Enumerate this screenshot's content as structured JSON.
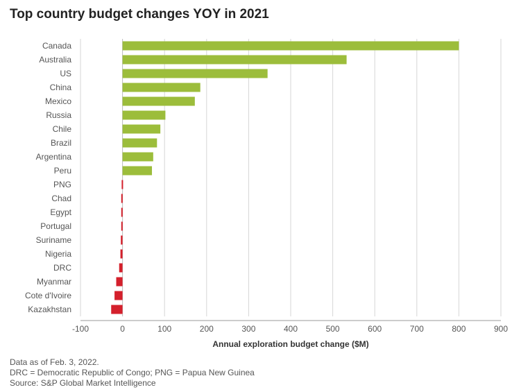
{
  "chart_data": {
    "type": "bar",
    "orientation": "horizontal",
    "title": "Top country budget changes YOY in 2021",
    "xlabel": "Annual exploration budget change ($M)",
    "ylabel": "",
    "xlim": [
      -100,
      900
    ],
    "xticks": [
      -100,
      0,
      100,
      200,
      300,
      400,
      500,
      600,
      700,
      800,
      900
    ],
    "grid": "vertical",
    "categories": [
      "Canada",
      "Australia",
      "US",
      "China",
      "Mexico",
      "Russia",
      "Chile",
      "Brazil",
      "Argentina",
      "Peru",
      "PNG",
      "Chad",
      "Egypt",
      "Portugal",
      "Suriname",
      "Nigeria",
      "DRC",
      "Myanmar",
      "Cote d'Ivoire",
      "Kazakhstan"
    ],
    "values": [
      800,
      533,
      345,
      185,
      172,
      102,
      90,
      82,
      73,
      70,
      -2,
      -3,
      -3,
      -3,
      -4,
      -5,
      -8,
      -15,
      -19,
      -27
    ],
    "colors": {
      "positive": "#9cbd3b",
      "negative": "#d4202c",
      "grid": "#d6d6d6",
      "axis": "#999999",
      "text": "#555555"
    }
  },
  "notes": [
    "Data as of Feb. 3, 2022.",
    "DRC = Democratic Republic of Congo; PNG = Papua New Guinea",
    "Source: S&P Global Market Intelligence"
  ]
}
